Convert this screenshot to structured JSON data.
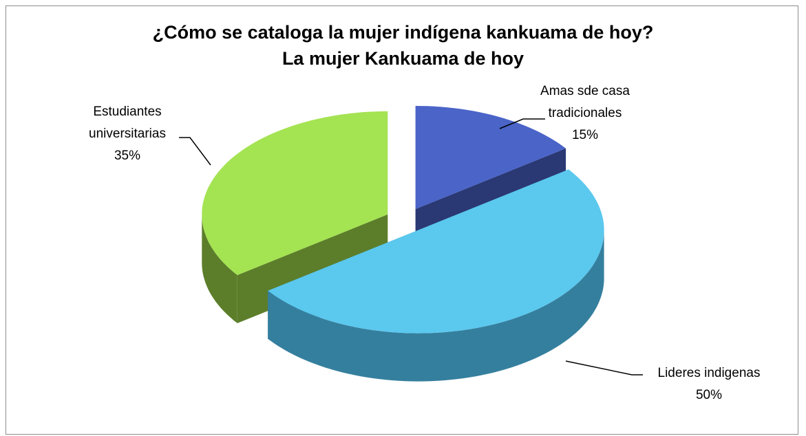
{
  "chart_data": {
    "type": "pie3d",
    "title": "¿Cómo se cataloga la mujer indígena kankuama de hoy?",
    "subtitle": "La mujer Kankuama de hoy",
    "categories": [
      "Amas sde casa tradicionales",
      "Lideres indigenas",
      "Estudiantes universitarias"
    ],
    "values": [
      15,
      50,
      35
    ],
    "value_labels": [
      "15%",
      "50%",
      "35%"
    ],
    "colors": [
      "#4a64c8",
      "#5bc8ee",
      "#a4e352"
    ],
    "side_colors": [
      "#2a3873",
      "#357f9e",
      "#5c7e2a"
    ]
  }
}
